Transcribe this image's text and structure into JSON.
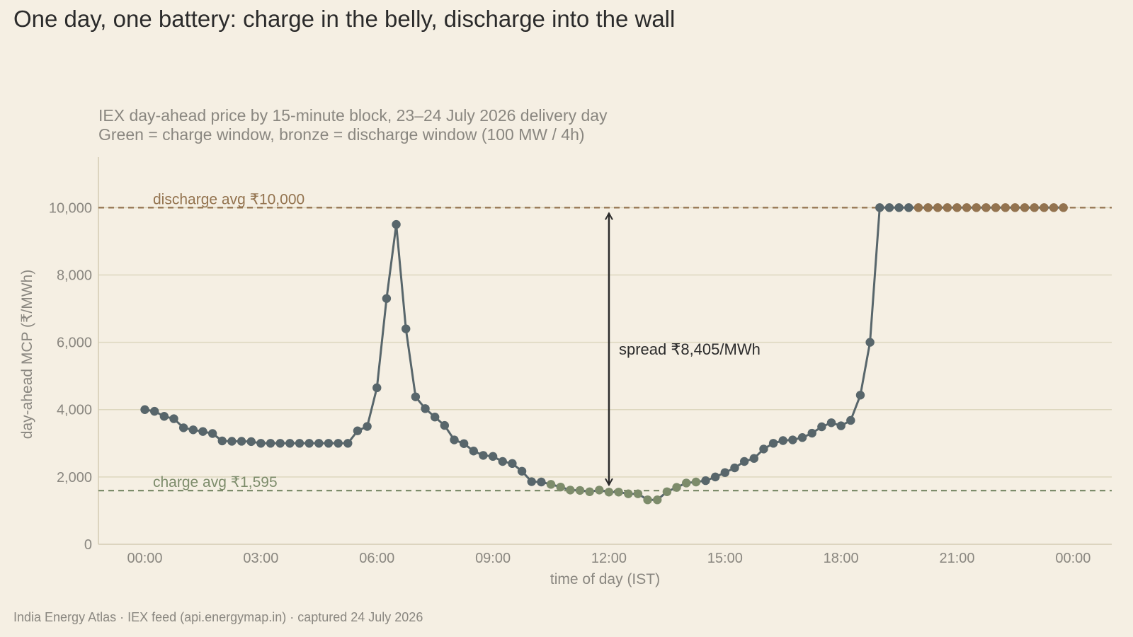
{
  "title": "One day, one battery: charge in the belly, discharge into the wall",
  "subtitle_line1": "IEX day-ahead price by 15-minute block, 23–24 July 2026 delivery day",
  "subtitle_line2": "Green = charge window, bronze = discharge window (100 MW / 4h)",
  "source": "India Energy Atlas · IEX feed (api.energymap.in) · captured 24 July 2026",
  "colors": {
    "background": "#f5efe3",
    "line": "#58666b",
    "point_normal": "#58666b",
    "point_charge": "#7d8c6b",
    "point_discharge": "#93734f",
    "grid": "#ddd7bf",
    "axis": "#d3ccb3"
  },
  "chart_data": {
    "type": "line",
    "xlabel": "time of day (IST)",
    "ylabel": "day-ahead MCP (₹/MWh)",
    "ylim": [
      0,
      11500
    ],
    "xlim_hours": [
      -1.2,
      25.0
    ],
    "grid": "horizontal",
    "x_ticks": [
      {
        "hour": 0,
        "label": "00:00"
      },
      {
        "hour": 3,
        "label": "03:00"
      },
      {
        "hour": 6,
        "label": "06:00"
      },
      {
        "hour": 9,
        "label": "09:00"
      },
      {
        "hour": 12,
        "label": "12:00"
      },
      {
        "hour": 15,
        "label": "15:00"
      },
      {
        "hour": 18,
        "label": "18:00"
      },
      {
        "hour": 21,
        "label": "21:00"
      },
      {
        "hour": 24,
        "label": "00:00"
      }
    ],
    "y_ticks": [
      {
        "value": 0,
        "label": "0"
      },
      {
        "value": 2000,
        "label": "2,000"
      },
      {
        "value": 4000,
        "label": "4,000"
      },
      {
        "value": 6000,
        "label": "6,000"
      },
      {
        "value": 8000,
        "label": "8,000"
      },
      {
        "value": 10000,
        "label": "10,000"
      }
    ],
    "series": [
      {
        "interval_hours": 0.25,
        "values": [
          4000,
          3950,
          3800,
          3730,
          3460,
          3400,
          3350,
          3290,
          3070,
          3060,
          3060,
          3050,
          3000,
          3000,
          3000,
          3000,
          3000,
          3000,
          3000,
          3000,
          3000,
          3000,
          3370,
          3500,
          4650,
          7300,
          9500,
          6400,
          4380,
          4030,
          3780,
          3530,
          3100,
          2990,
          2770,
          2640,
          2610,
          2460,
          2400,
          2170,
          1860,
          1850,
          1780,
          1700,
          1610,
          1600,
          1560,
          1610,
          1550,
          1550,
          1500,
          1500,
          1320,
          1320,
          1560,
          1690,
          1820,
          1850,
          1890,
          2000,
          2130,
          2270,
          2460,
          2550,
          2830,
          3000,
          3080,
          3100,
          3170,
          3300,
          3490,
          3610,
          3520,
          3680,
          4430,
          6000,
          10000,
          10000,
          10000,
          10000,
          10000,
          10000,
          10000,
          10000,
          10000,
          10000,
          10000,
          10000,
          10000,
          10000,
          10000,
          10000,
          10000,
          10000,
          10000,
          10000
        ],
        "windows": [
          {
            "kind": "charge",
            "start_index": 42,
            "end_index": 57
          },
          {
            "kind": "discharge",
            "start_index": 80,
            "end_index": 95
          }
        ]
      }
    ],
    "reference_lines": [
      {
        "kind": "discharge",
        "value": 10000,
        "label": "discharge avg ₹10,000"
      },
      {
        "kind": "charge",
        "value": 1595,
        "label": "charge avg ₹1,595"
      }
    ],
    "annotation": {
      "label": "spread ₹8,405/MWh",
      "hour": 12,
      "from": 1595,
      "to": 10000
    }
  }
}
